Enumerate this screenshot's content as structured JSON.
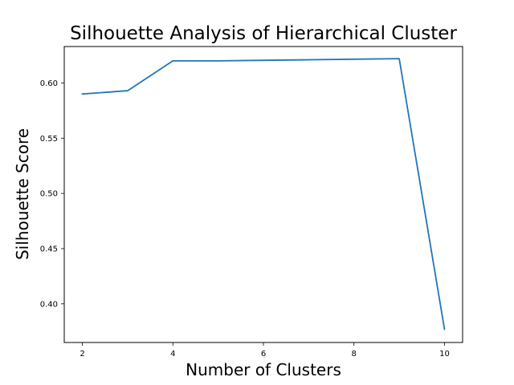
{
  "chart_data": {
    "type": "line",
    "title": "Silhouette Analysis of Hierarchical Cluster",
    "xlabel": "Number of Clusters",
    "ylabel": "Silhouette Score",
    "xlim": [
      1.6,
      10.4
    ],
    "ylim": [
      0.365,
      0.633
    ],
    "x_ticks": [
      2,
      4,
      6,
      8,
      10
    ],
    "x_tick_labels": [
      "2",
      "4",
      "6",
      "8",
      "10"
    ],
    "y_ticks": [
      0.4,
      0.45,
      0.5,
      0.55,
      0.6
    ],
    "y_tick_labels": [
      "0.40",
      "0.45",
      "0.50",
      "0.55",
      "0.60"
    ],
    "grid": false,
    "series": [
      {
        "color": "#1f77b4",
        "x": [
          2,
          3,
          4,
          5,
          6,
          7,
          8,
          9,
          10
        ],
        "y": [
          0.59,
          0.593,
          0.62,
          0.62,
          0.6205,
          0.621,
          0.6215,
          0.622,
          0.377
        ]
      }
    ]
  }
}
